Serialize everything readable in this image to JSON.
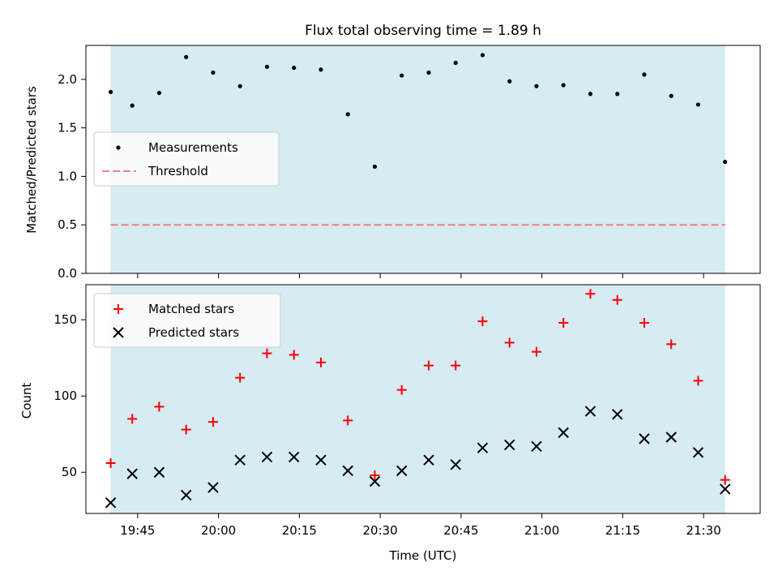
{
  "figure_title": "Flux total observing time = 1.89 h",
  "colors": {
    "shade": "#add8e6",
    "threshold": "#f08080",
    "matched": "#ff0000",
    "predicted": "#000000",
    "measurement": "#000000"
  },
  "chart_data": [
    {
      "type": "scatter",
      "panel": "top",
      "ylabel": "Matched/Predicted stars",
      "xlabel": "",
      "ylim": [
        0,
        2.35
      ],
      "yticks": [
        "0.0",
        "0.5",
        "1.0",
        "1.5",
        "2.0"
      ],
      "shaded_span": [
        "19:40",
        "21:34"
      ],
      "legend_position": "center-left",
      "series": [
        {
          "name": "Measurements",
          "x": [
            "19:40",
            "19:44",
            "19:49",
            "19:54",
            "19:59",
            "20:04",
            "20:09",
            "20:14",
            "20:19",
            "20:24",
            "20:29",
            "20:34",
            "20:39",
            "20:44",
            "20:49",
            "20:54",
            "20:59",
            "21:04",
            "21:09",
            "21:14",
            "21:19",
            "21:24",
            "21:29",
            "21:34"
          ],
          "y": [
            1.87,
            1.73,
            1.86,
            2.23,
            2.07,
            1.93,
            2.13,
            2.12,
            2.1,
            1.64,
            1.1,
            2.04,
            2.07,
            2.17,
            2.25,
            1.98,
            1.93,
            1.94,
            1.85,
            1.85,
            2.05,
            1.83,
            1.74,
            1.15
          ]
        },
        {
          "name": "Threshold",
          "x": [
            "19:40",
            "21:34"
          ],
          "y": [
            0.5,
            0.5
          ]
        }
      ]
    },
    {
      "type": "scatter",
      "panel": "bottom",
      "ylabel": "Count",
      "xlabel": "Time (UTC)",
      "ylim": [
        23,
        173
      ],
      "yticks": [
        "50",
        "100",
        "150"
      ],
      "xticks": [
        "19:45",
        "20:00",
        "20:15",
        "20:30",
        "20:45",
        "21:00",
        "21:15",
        "21:30"
      ],
      "shaded_span": [
        "19:40",
        "21:34"
      ],
      "legend_position": "upper-left",
      "series": [
        {
          "name": "Matched stars",
          "x": [
            "19:40",
            "19:44",
            "19:49",
            "19:54",
            "19:59",
            "20:04",
            "20:09",
            "20:14",
            "20:19",
            "20:24",
            "20:29",
            "20:34",
            "20:39",
            "20:44",
            "20:49",
            "20:54",
            "20:59",
            "21:04",
            "21:09",
            "21:14",
            "21:19",
            "21:24",
            "21:29",
            "21:34"
          ],
          "y": [
            56,
            85,
            93,
            78,
            83,
            112,
            128,
            127,
            122,
            84,
            48,
            104,
            120,
            120,
            149,
            135,
            129,
            148,
            167,
            163,
            148,
            134,
            110,
            45
          ]
        },
        {
          "name": "Predicted stars",
          "x": [
            "19:40",
            "19:44",
            "19:49",
            "19:54",
            "19:59",
            "20:04",
            "20:09",
            "20:14",
            "20:19",
            "20:24",
            "20:29",
            "20:34",
            "20:39",
            "20:44",
            "20:49",
            "20:54",
            "20:59",
            "21:04",
            "21:09",
            "21:14",
            "21:19",
            "21:24",
            "21:29",
            "21:34"
          ],
          "y": [
            30,
            49,
            50,
            35,
            40,
            58,
            60,
            60,
            58,
            51,
            44,
            51,
            58,
            55,
            66,
            68,
            67,
            76,
            90,
            88,
            72,
            73,
            63,
            39
          ]
        }
      ]
    }
  ]
}
